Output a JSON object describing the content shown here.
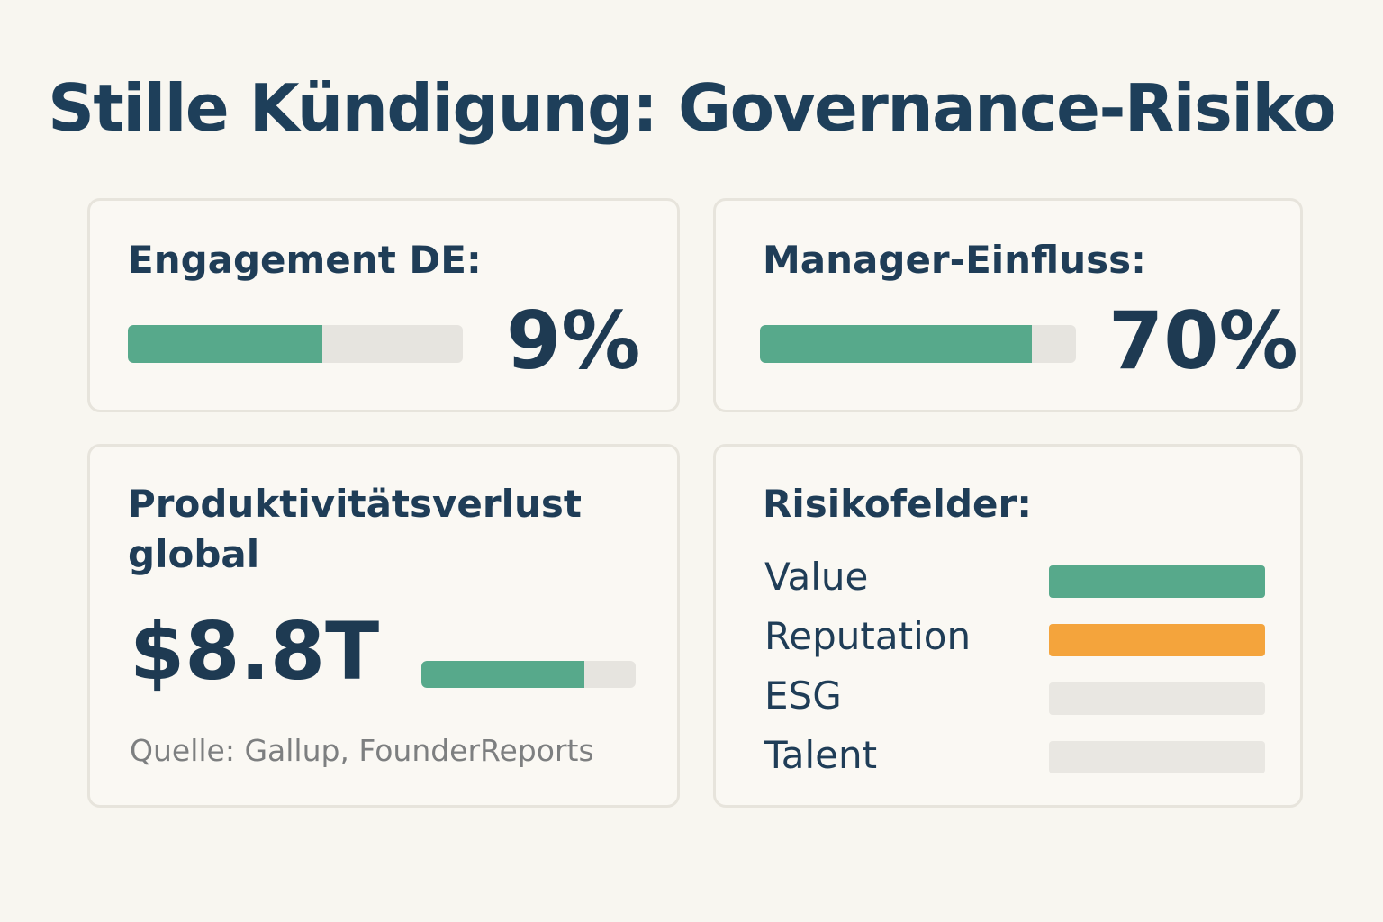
{
  "title": "Stille Kündigung: Governance-Risiko",
  "cards": {
    "engagement": {
      "label": "Engagement DE:",
      "value_text": "9%",
      "bar_fill_fraction": 0.58
    },
    "manager": {
      "label": "Manager-Einfluss:",
      "value_text": "70%",
      "bar_fill_fraction": 0.86
    },
    "productivity": {
      "label_line1": "Produktivitätsverlust",
      "label_line2": "global",
      "value_text": "$8.8T",
      "bar_fill_fraction": 0.76,
      "source": "Quelle: Gallup, FounderReports"
    },
    "risks": {
      "label": "Risikofelder:",
      "items": [
        {
          "label": "Value",
          "color": "#57a98b"
        },
        {
          "label": "Reputation",
          "color": "#f4a43c"
        },
        {
          "label": "ESG",
          "color": "#e9e7e2"
        },
        {
          "label": "Talent",
          "color": "#e9e7e2"
        }
      ]
    }
  },
  "colors": {
    "accent": "#57a98b",
    "warning": "#f4a43c",
    "track": "#e6e4df",
    "text": "#1f3d57",
    "background": "#f8f6f0"
  }
}
